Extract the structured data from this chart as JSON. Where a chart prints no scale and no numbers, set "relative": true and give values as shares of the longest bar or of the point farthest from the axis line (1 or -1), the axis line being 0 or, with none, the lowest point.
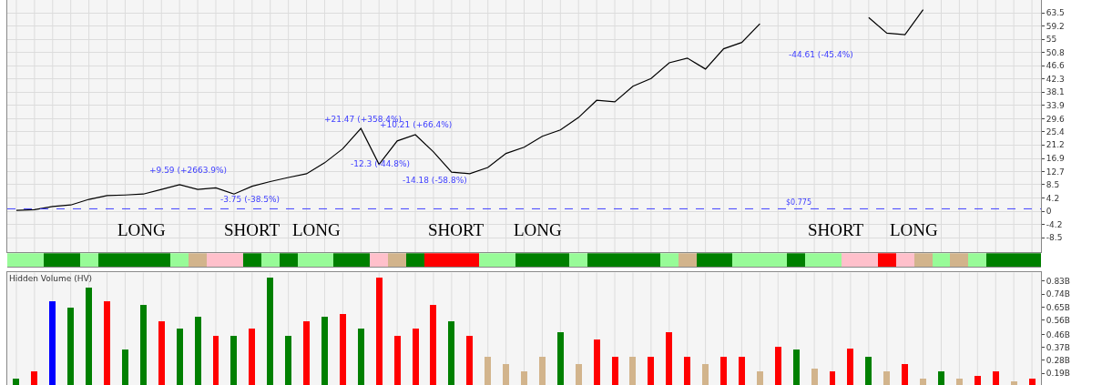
{
  "chart_data": [
    {
      "type": "line",
      "categories": [
        null,
        null,
        null,
        null,
        null,
        null,
        null,
        null,
        null,
        null,
        null,
        null,
        null,
        null,
        null,
        null,
        null,
        null,
        null,
        null,
        null,
        null,
        null,
        null,
        null,
        null,
        null,
        null,
        null,
        null,
        null,
        null,
        null,
        null,
        null,
        null,
        null,
        null,
        null,
        null,
        null,
        null,
        null,
        null,
        null,
        null,
        null,
        null,
        null,
        null,
        null,
        null,
        null,
        null,
        null,
        null,
        null
      ],
      "series": [
        {
          "color": "#000000",
          "values": [
            0.3,
            0.5,
            1.5,
            2.0,
            3.8,
            5.0,
            5.2,
            5.5,
            7.0,
            8.5,
            7.0,
            7.5,
            5.5,
            8.0,
            9.5,
            10.8,
            12.0,
            15.5,
            20.0,
            26.5,
            15.0,
            22.5,
            24.5,
            19.0,
            12.5,
            12.0,
            14.0,
            18.5,
            20.5,
            24.0,
            26.0,
            30.0,
            35.5,
            35.0,
            40.0,
            42.5,
            47.5,
            49.0,
            45.5,
            52.0,
            54.0,
            60.0,
            null,
            null,
            null,
            null,
            null,
            null,
            null,
            null,
            null,
            null,
            null,
            null,
            null,
            null,
            null
          ]
        },
        {
          "color": "#000000",
          "values": [
            null,
            null,
            null,
            null,
            null,
            null,
            null,
            null,
            null,
            null,
            null,
            null,
            null,
            null,
            null,
            null,
            null,
            null,
            null,
            null,
            null,
            null,
            null,
            null,
            null,
            null,
            null,
            null,
            null,
            null,
            null,
            null,
            null,
            null,
            null,
            null,
            null,
            null,
            null,
            null,
            null,
            null,
            null,
            null,
            null,
            null,
            null,
            62.0,
            57.0,
            56.5,
            64.5,
            null,
            null,
            null,
            null,
            null,
            null
          ]
        }
      ],
      "ylim": [
        -13.1,
        67.6
      ],
      "yticks": [
        -8.5,
        -4.2,
        0,
        4.2,
        8.5,
        12.7,
        16.9,
        21.2,
        25.4,
        29.6,
        33.9,
        38.1,
        42.3,
        46.6,
        50.8,
        55,
        59.2,
        63.5
      ],
      "tick_labels": "y",
      "grid": true,
      "ref_lines": [
        {
          "axis": "y",
          "value": 0.775,
          "label": "$0.775",
          "color": "#4040ff",
          "line_style": "dashed"
        }
      ],
      "annotations": [
        "+9.59 (+2663.9%)",
        "-3.75 (-38.5%)",
        "+21.47 (+358.4%)",
        "+10.21 (+66.4%)",
        "-12.3 (-44.8%)",
        "-14.18 (-58.8%)",
        "-44.61 (-45.4%)",
        "LONG",
        "SHORT",
        "LONG",
        "SHORT",
        "LONG",
        "SHORT",
        "LONG"
      ]
    },
    {
      "type": "bar",
      "relative": true,
      "categories": [
        null,
        null,
        null,
        null,
        null,
        null,
        null,
        null,
        null,
        null,
        null,
        null,
        null,
        null,
        null,
        null,
        null,
        null,
        null,
        null,
        null,
        null,
        null,
        null,
        null,
        null,
        null,
        null,
        null,
        null,
        null,
        null,
        null,
        null,
        null,
        null,
        null,
        null,
        null,
        null,
        null,
        null,
        null,
        null,
        null,
        null,
        null,
        null,
        null,
        null,
        null,
        null,
        null,
        null,
        null,
        null,
        null
      ],
      "values": [
        1,
        1,
        1,
        1,
        1,
        1,
        1,
        1,
        1,
        1,
        1,
        1,
        1,
        1,
        1,
        1,
        1,
        1,
        1,
        1,
        1,
        1,
        1,
        1,
        1,
        1,
        1,
        1,
        1,
        1,
        1,
        1,
        1,
        1,
        1,
        1,
        1,
        1,
        1,
        1,
        1,
        1,
        1,
        1,
        1,
        1,
        1,
        1,
        1,
        1,
        1,
        1,
        1,
        1,
        1,
        1,
        1
      ],
      "colors": [
        "#98fb98",
        "#98fb98",
        "#008000",
        "#008000",
        "#98fb98",
        "#008000",
        "#008000",
        "#008000",
        "#008000",
        "#98fb98",
        "#d2b48c",
        "#ffc0cb",
        "#ffc0cb",
        "#008000",
        "#98fb98",
        "#008000",
        "#98fb98",
        "#98fb98",
        "#008000",
        "#008000",
        "#ffc0cb",
        "#d2b48c",
        "#008000",
        "#ff0000",
        "#ff0000",
        "#ff0000",
        "#98fb98",
        "#98fb98",
        "#008000",
        "#008000",
        "#008000",
        "#98fb98",
        "#008000",
        "#008000",
        "#008000",
        "#008000",
        "#98fb98",
        "#d2b48c",
        "#008000",
        "#008000",
        "#98fb98",
        "#98fb98",
        "#98fb98",
        "#008000",
        "#98fb98",
        "#98fb98",
        "#ffc0cb",
        "#ffc0cb",
        "#ff0000",
        "#ffc0cb",
        "#d2b48c",
        "#98fb98",
        "#d2b48c",
        "#98fb98",
        "#008000",
        "#008000",
        "#008000"
      ],
      "tick_labels": false
    },
    {
      "type": "bar",
      "title": "Hidden Volume (HV)",
      "categories": [
        null,
        null,
        null,
        null,
        null,
        null,
        null,
        null,
        null,
        null,
        null,
        null,
        null,
        null,
        null,
        null,
        null,
        null,
        null,
        null,
        null,
        null,
        null,
        null,
        null,
        null,
        null,
        null,
        null,
        null,
        null,
        null,
        null,
        null,
        null,
        null,
        null,
        null,
        null,
        null,
        null,
        null,
        null,
        null,
        null,
        null,
        null,
        null,
        null,
        null,
        null,
        null,
        null,
        null,
        null,
        null,
        null
      ],
      "values": [
        0.15,
        0.2,
        0.69,
        0.64,
        0.78,
        0.69,
        0.35,
        0.66,
        0.55,
        0.5,
        0.58,
        0.45,
        0.45,
        0.5,
        0.85,
        0.45,
        0.55,
        0.58,
        0.6,
        0.5,
        0.85,
        0.45,
        0.5,
        0.66,
        0.55,
        0.45,
        0.3,
        0.25,
        0.2,
        0.3,
        0.47,
        0.25,
        0.42,
        0.3,
        0.3,
        0.3,
        0.47,
        0.3,
        0.25,
        0.3,
        0.3,
        0.2,
        0.37,
        0.35,
        0.22,
        0.2,
        0.36,
        0.3,
        0.2,
        0.25,
        0.15,
        0.2,
        0.15,
        0.17,
        0.2,
        0.13,
        0.15
      ],
      "colors": [
        "#008000",
        "#ff0000",
        "#0000ff",
        "#008000",
        "#008000",
        "#ff0000",
        "#008000",
        "#008000",
        "#ff0000",
        "#008000",
        "#008000",
        "#ff0000",
        "#008000",
        "#ff0000",
        "#008000",
        "#008000",
        "#ff0000",
        "#008000",
        "#ff0000",
        "#008000",
        "#ff0000",
        "#ff0000",
        "#ff0000",
        "#ff0000",
        "#008000",
        "#ff0000",
        "#d2b48c",
        "#d2b48c",
        "#d2b48c",
        "#d2b48c",
        "#008000",
        "#d2b48c",
        "#ff0000",
        "#ff0000",
        "#d2b48c",
        "#ff0000",
        "#ff0000",
        "#ff0000",
        "#d2b48c",
        "#ff0000",
        "#ff0000",
        "#d2b48c",
        "#ff0000",
        "#008000",
        "#d2b48c",
        "#ff0000",
        "#ff0000",
        "#008000",
        "#d2b48c",
        "#ff0000",
        "#d2b48c",
        "#008000",
        "#d2b48c",
        "#ff0000",
        "#ff0000",
        "#d2b48c",
        "#ff0000"
      ],
      "ylim": [
        0.108,
        0.89
      ],
      "yticks": [
        {
          "value": 0.19,
          "label": "0.19B"
        },
        {
          "value": 0.28,
          "label": "0.28B"
        },
        {
          "value": 0.37,
          "label": "0.37B"
        },
        {
          "value": 0.46,
          "label": "0.46B"
        },
        {
          "value": 0.56,
          "label": "0.56B"
        },
        {
          "value": 0.65,
          "label": "0.65B"
        },
        {
          "value": 0.74,
          "label": "0.74B"
        },
        {
          "value": 0.83,
          "label": "0.83B"
        }
      ],
      "tick_labels": "y",
      "grid": "x"
    }
  ]
}
